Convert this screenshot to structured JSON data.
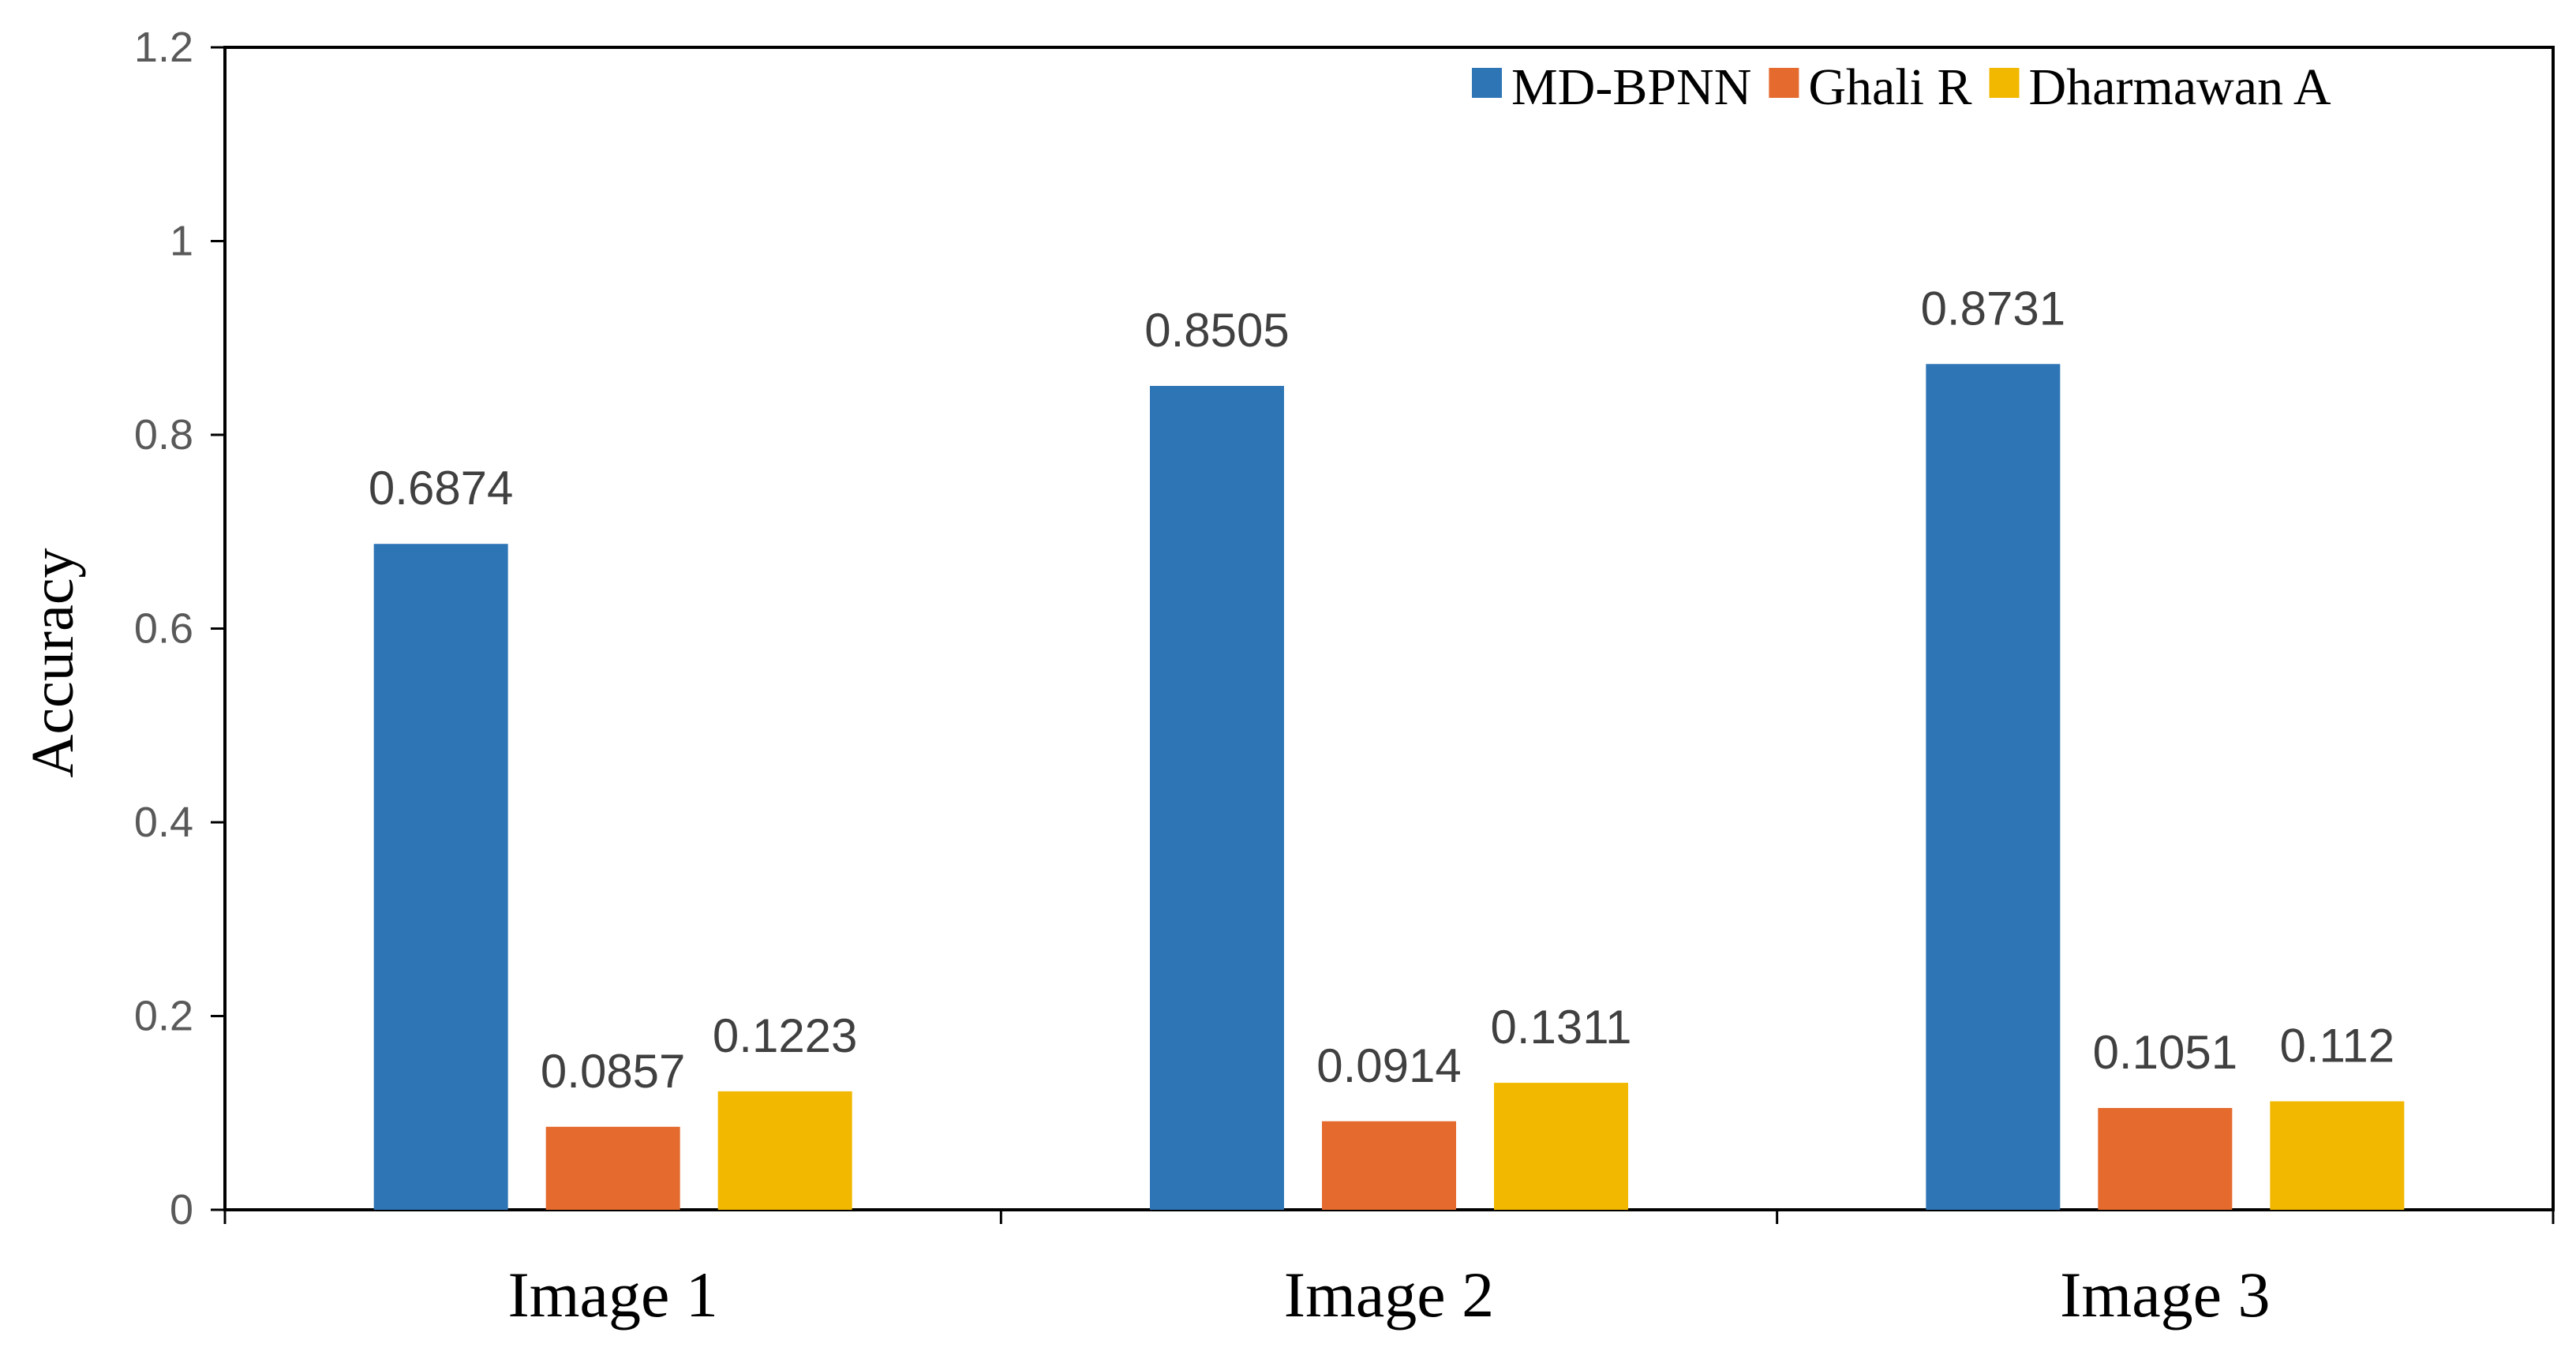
{
  "chart_data": {
    "type": "bar",
    "title": "",
    "xlabel": "",
    "ylabel": "Accuracy",
    "ylim": [
      0,
      1.2
    ],
    "yticks": [
      "0",
      "0.2",
      "0.4",
      "0.6",
      "0.8",
      "1",
      "1.2"
    ],
    "grid": false,
    "legend_position": "top-right",
    "categories": [
      "Image 1",
      "Image 2",
      "Image 3"
    ],
    "series": [
      {
        "name": "MD-BPNN",
        "color": "#2E75B6",
        "values": [
          0.6874,
          0.8505,
          0.8731
        ],
        "labels": [
          "0.6874",
          "0.8505",
          "0.8731"
        ]
      },
      {
        "name": "Ghali R",
        "color": "#E46A2E",
        "values": [
          0.0857,
          0.0914,
          0.1051
        ],
        "labels": [
          "0.0857",
          "0.0914",
          "0.1051"
        ]
      },
      {
        "name": "Dharmawan A",
        "color": "#F2B800",
        "values": [
          0.1223,
          0.1311,
          0.112
        ],
        "labels": [
          "0.1223",
          "0.1311",
          "0.112"
        ]
      }
    ]
  }
}
